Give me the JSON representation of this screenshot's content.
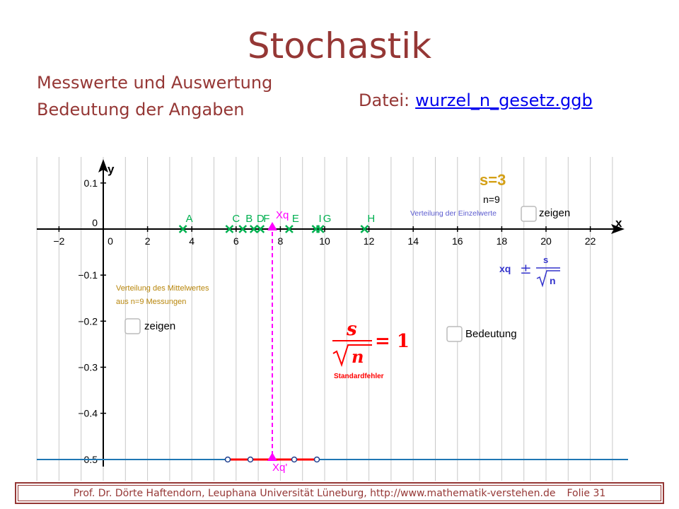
{
  "slide": {
    "title": "Stochastik",
    "subtitle_line1": "Messwerte und Auswertung",
    "subtitle_line2": "Bedeutung der Angaben",
    "file_label": "Datei:",
    "file_link": "wurzel_n_gesetz.ggb",
    "footer_text": "Prof. Dr. Dörte Haftendorn, Leuphana Universität Lüneburg,  http://www.mathematik-verstehen.de",
    "footer_page": "Folie 31"
  },
  "geogebra": {
    "axis_x_label": "x",
    "axis_y_label": "y",
    "x_ticks": [
      "−2",
      "0",
      "2",
      "4",
      "6",
      "8",
      "10",
      "12",
      "14",
      "16",
      "18",
      "20",
      "22"
    ],
    "y_ticks": [
      "0.1",
      "0",
      "−0.1",
      "−0.2",
      "−0.3",
      "−0.4",
      "−0.5"
    ],
    "points": [
      {
        "label": "A",
        "x": 3.6
      },
      {
        "label": "C",
        "x": 5.7
      },
      {
        "label": "B",
        "x": 6.3
      },
      {
        "label": "D",
        "x": 6.8
      },
      {
        "label": "F",
        "x": 7.1
      },
      {
        "label": "E",
        "x": 8.4
      },
      {
        "label": "I",
        "x": 9.6
      },
      {
        "label": "G",
        "x": 9.8
      },
      {
        "label": "H",
        "x": 11.8
      }
    ],
    "mean_label": "Xq",
    "mean_projection_label": "Xq'",
    "mean_x": 7.6,
    "mean_y_line": -0.5,
    "s_value": "s=3",
    "n_value": "n=9",
    "einzelwerte_caption": "Verteilung der Einzelwerte",
    "checkbox_einzelwerte_label": "zeigen",
    "interval_expr_left": "xq",
    "interval_expr_pm": "±",
    "interval_expr_num": "s",
    "interval_expr_den": "n",
    "mittelwert_caption_line1": "Verteilung des Mittelwertes",
    "mittelwert_caption_line2": "aus n=9 Messungen",
    "checkbox_mittelwert_label": "zeigen",
    "formula_num": "s",
    "formula_den": "n",
    "formula_rhs": "= 1",
    "formula_caption": "Standardfehler",
    "checkbox_bedeutung_label": "Bedeutung",
    "colors": {
      "grid": "#c0c0c0",
      "axis": "#000000",
      "points": "#00b050",
      "mean": "#ff00ff",
      "s_label": "#d4a017",
      "caption_gold": "#b8860b",
      "formula_red": "#ff0000",
      "interval_blue": "#3333cc",
      "horizontal_line": "#1f77b4",
      "segment_red": "#ff0000"
    }
  }
}
